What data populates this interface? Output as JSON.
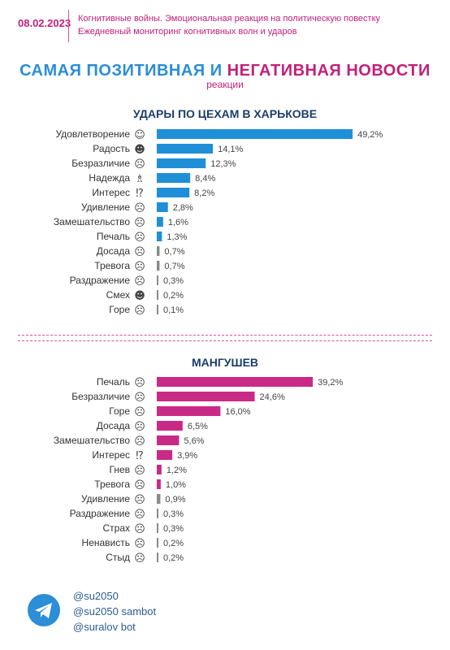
{
  "header": {
    "date": "08.02.2023",
    "line1": "Когнитивные войны. Эмоциональная реакция на политическую повестку",
    "line2": "Ежедневный мониторинг когнитивных волн и ударов"
  },
  "title": {
    "part1": "САМАЯ ПОЗИТИВНАЯ",
    "connector": " И ",
    "part2": "НЕГАТИВНАЯ НОВОСТИ",
    "subtitle": "реакции"
  },
  "colors": {
    "positive": "#1f8fd8",
    "negative": "#c92a86",
    "minor": "#8a8a8a"
  },
  "chart_data": [
    {
      "type": "bar",
      "orientation": "horizontal",
      "title": "УДАРЫ ПО ЦЕХАМ В ХАРЬКОВЕ",
      "categories": [
        "Удовлетворение",
        "Радость",
        "Безразличие",
        "Надежда",
        "Интерес",
        "Удивление",
        "Замешательство",
        "Печаль",
        "Досада",
        "Тревога",
        "Раздражение",
        "Смех",
        "Горе"
      ],
      "icons": [
        "☺",
        "☻",
        "☹",
        "♗",
        "⁉",
        "☹",
        "☹",
        "☹",
        "☹",
        "☹",
        "☹",
        "☻",
        "☹"
      ],
      "values": [
        49.2,
        14.1,
        12.3,
        8.4,
        8.2,
        2.8,
        1.6,
        1.3,
        0.7,
        0.7,
        0.3,
        0.2,
        0.1
      ],
      "labels": [
        "49,2%",
        "14,1%",
        "12,3%",
        "8,4%",
        "8,2%",
        "2,8%",
        "1,6%",
        "1,3%",
        "0,7%",
        "0,7%",
        "0,3%",
        "0,2%",
        "0,1%"
      ],
      "xlim": [
        0,
        50
      ]
    },
    {
      "type": "bar",
      "orientation": "horizontal",
      "title": "МАНГУШЕВ",
      "categories": [
        "Печаль",
        "Безразличие",
        "Горе",
        "Досада",
        "Замешательство",
        "Интерес",
        "Гнев",
        "Тревога",
        "Удивление",
        "Раздражение",
        "Страх",
        "Ненависть",
        "Стыд"
      ],
      "icons": [
        "☹",
        "☹",
        "☹",
        "☹",
        "☹",
        "⁉",
        "☹",
        "☹",
        "☹",
        "☹",
        "☹",
        "☹",
        "☹"
      ],
      "values": [
        39.2,
        24.6,
        16.0,
        6.5,
        5.6,
        3.9,
        1.2,
        1.0,
        0.9,
        0.3,
        0.3,
        0.2,
        0.2
      ],
      "labels": [
        "39,2%",
        "24,6%",
        "16,0%",
        "6,5%",
        "5,6%",
        "3,9%",
        "1,2%",
        "1,0%",
        "0,9%",
        "0,3%",
        "0,3%",
        "0,2%",
        "0,2%"
      ],
      "xlim": [
        0,
        50
      ]
    }
  ],
  "footer": {
    "handles": [
      "@su2050",
      "@su2050 sambot",
      "@suralov bot"
    ],
    "icon": "telegram-icon"
  }
}
